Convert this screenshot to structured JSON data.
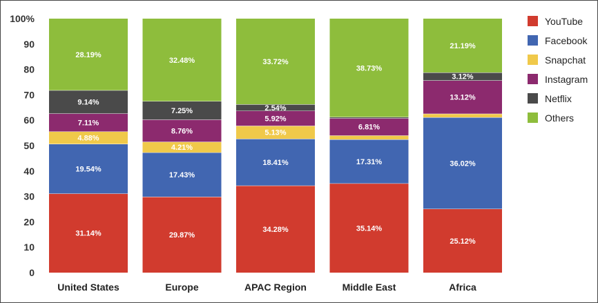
{
  "chart_data": {
    "type": "bar",
    "stacked": true,
    "categories": [
      "United States",
      "Europe",
      "APAC Region",
      "Middle East",
      "Africa"
    ],
    "series": [
      {
        "name": "YouTube",
        "color": "#d13b2e",
        "values": [
          31.14,
          29.87,
          34.28,
          35.14,
          25.12
        ],
        "labels": [
          "31.14%",
          "29.87%",
          "34.28%",
          "35.14%",
          "25.12%"
        ]
      },
      {
        "name": "Facebook",
        "color": "#4166b1",
        "values": [
          19.54,
          17.43,
          18.41,
          17.31,
          36.02
        ],
        "labels": [
          "19.54%",
          "17.43%",
          "18.41%",
          "17.31%",
          "36.02%"
        ]
      },
      {
        "name": "Snapchat",
        "color": "#f0c94a",
        "values": [
          4.88,
          4.21,
          5.13,
          1.55,
          1.43
        ],
        "labels": [
          "4.88%",
          "4.21%",
          "5.13%",
          "1.55%",
          "1.43%"
        ]
      },
      {
        "name": "Instagram",
        "color": "#8c2a6e",
        "values": [
          7.11,
          8.76,
          5.92,
          6.81,
          13.12
        ],
        "labels": [
          "7.11%",
          "8.76%",
          "5.92%",
          "6.81%",
          "13.12%"
        ]
      },
      {
        "name": "Netflix",
        "color": "#4a4a4a",
        "values": [
          9.14,
          7.25,
          2.54,
          0.46,
          3.12
        ],
        "labels": [
          "9.14%",
          "7.25%",
          "2.54%",
          "0.46%",
          "3.12%"
        ]
      },
      {
        "name": "Others",
        "color": "#8ebd3c",
        "values": [
          28.19,
          32.48,
          33.72,
          38.73,
          21.19
        ],
        "labels": [
          "28.19%",
          "32.48%",
          "33.72%",
          "38.73%",
          "21.19%"
        ]
      }
    ],
    "yticks": [
      "0",
      "10",
      "20",
      "30",
      "40",
      "50",
      "60",
      "70",
      "80",
      "90",
      "100%"
    ],
    "ylim": [
      0,
      100
    ],
    "grid": false,
    "legend_position": "right",
    "title": "",
    "xlabel": "",
    "ylabel": ""
  }
}
